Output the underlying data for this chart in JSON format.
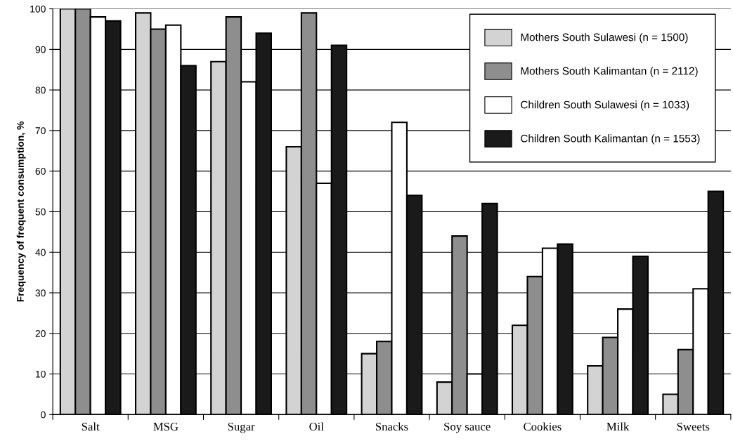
{
  "chart_data": {
    "type": "bar",
    "ylabel": "Frequency of frequent consumption, %",
    "categories": [
      "Salt",
      "MSG",
      "Sugar",
      "Oil",
      "Snacks",
      "Soy sauce",
      "Cookies",
      "Milk",
      "Sweets"
    ],
    "series": [
      {
        "name": "Mothers South Sulawesi (n = 1500)",
        "color": "#d3d3d3",
        "values": [
          100,
          99,
          87,
          66,
          15,
          8,
          22,
          12,
          5
        ]
      },
      {
        "name": "Mothers South Kalimantan (n = 2112)",
        "color": "#8e8e8e",
        "values": [
          100,
          95,
          98,
          99,
          18,
          44,
          34,
          19,
          16
        ]
      },
      {
        "name": "Children South Sulawesi (n = 1033)",
        "color": "#ffffff",
        "values": [
          98,
          96,
          82,
          57,
          72,
          10,
          41,
          26,
          31
        ]
      },
      {
        "name": "Children South Kalimantan (n = 1553)",
        "color": "#1a1a1a",
        "values": [
          97,
          86,
          94,
          91,
          54,
          52,
          42,
          39,
          55
        ]
      }
    ],
    "ylim": [
      0,
      100
    ],
    "yticks": [
      0,
      10,
      20,
      30,
      40,
      50,
      60,
      70,
      80,
      90,
      100
    ],
    "grid": "y",
    "legend": "top right"
  }
}
